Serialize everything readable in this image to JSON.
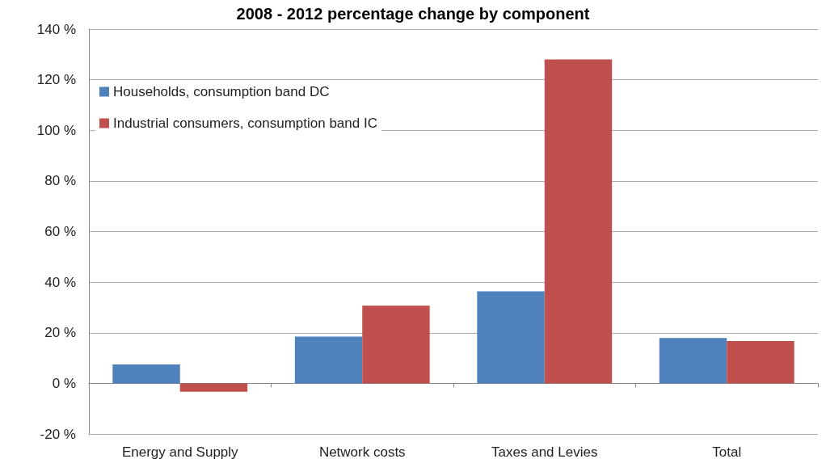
{
  "chart_data": {
    "type": "bar",
    "title": "2008 - 2012 percentage change by component",
    "categories": [
      "Energy and Supply",
      "Network costs",
      "Taxes and Levies",
      "Total"
    ],
    "series": [
      {
        "name": "Households, consumption band DC",
        "color": "#4f81bd",
        "values": [
          7.5,
          18.5,
          36.4,
          17.9
        ]
      },
      {
        "name": "Industrial consumers, consumption band IC",
        "color": "#c0504d",
        "values": [
          -3.3,
          30.7,
          128,
          16.7
        ]
      }
    ],
    "ylim": [
      -20,
      140
    ],
    "yticks": [
      {
        "value": -20,
        "label": "-20 %"
      },
      {
        "value": 0,
        "label": "0 %"
      },
      {
        "value": 20,
        "label": "20 %"
      },
      {
        "value": 40,
        "label": "40 %"
      },
      {
        "value": 60,
        "label": "60 %"
      },
      {
        "value": 80,
        "label": "80 %"
      },
      {
        "value": 100,
        "label": "100 %"
      },
      {
        "value": 120,
        "label": "120 %"
      },
      {
        "value": 140,
        "label": "140 %"
      }
    ],
    "grid": "y",
    "legend": "top left"
  }
}
